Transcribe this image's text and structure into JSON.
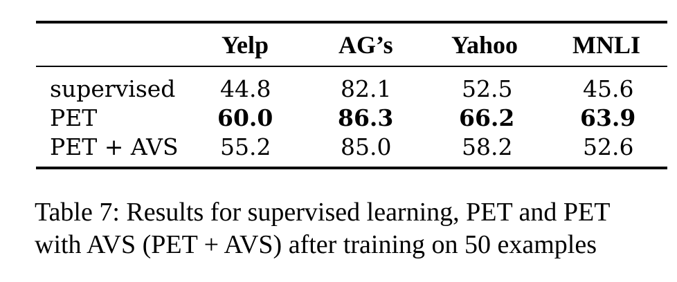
{
  "table": {
    "headers": [
      "Yelp",
      "AG’s",
      "Yahoo",
      "MNLI"
    ],
    "rows": [
      {
        "label": "supervised",
        "values": [
          "44.8",
          "82.1",
          "52.5",
          "45.6"
        ],
        "bold": false
      },
      {
        "label": "PET",
        "values": [
          "60.0",
          "86.3",
          "66.2",
          "63.9"
        ],
        "bold": true
      },
      {
        "label": "PET + AVS",
        "values": [
          "55.2",
          "85.0",
          "58.2",
          "52.6"
        ],
        "bold": false
      }
    ]
  },
  "caption": {
    "line1": "Table 7: Results for supervised learning, PET and PET",
    "line2": "with AVS (PET + AVS) after training on 50 examples"
  }
}
